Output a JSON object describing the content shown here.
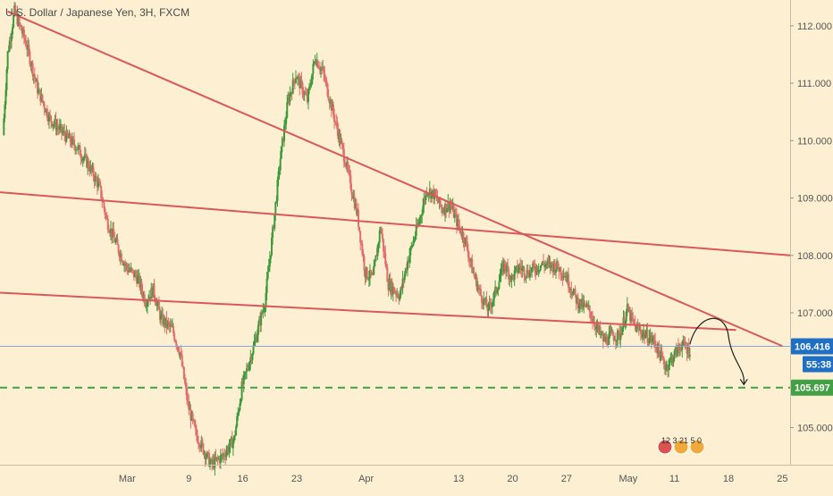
{
  "chart_data": {
    "type": "candlestick",
    "title": "U.S. Dollar / Japanese Yen, 3H, FXCM",
    "ylim": [
      104.4,
      112.45
    ],
    "y_ticks": [
      "112.000",
      "111.000",
      "110.000",
      "109.000",
      "108.000",
      "107.000",
      "105.000"
    ],
    "y_tick_values": [
      112,
      111,
      110,
      109,
      108,
      107,
      105
    ],
    "x_labels": [
      "Mar",
      "9",
      "16",
      "23",
      "Apr",
      "13",
      "20",
      "27",
      "May",
      "11",
      "18",
      "25"
    ],
    "x_label_days": [
      16,
      24,
      31,
      38,
      47,
      59,
      66,
      73,
      81,
      87,
      94,
      101
    ],
    "x_day_range": [
      -0.5,
      102
    ],
    "price_path": [
      [
        0,
        110.1
      ],
      [
        0.6,
        111.5
      ],
      [
        1.5,
        112.25
      ],
      [
        3,
        111.7
      ],
      [
        4.5,
        110.9
      ],
      [
        6,
        110.4
      ],
      [
        8,
        110.1
      ],
      [
        9.5,
        109.9
      ],
      [
        11,
        109.6
      ],
      [
        12.5,
        109.2
      ],
      [
        13.5,
        108.6
      ],
      [
        15,
        108.1
      ],
      [
        16,
        107.8
      ],
      [
        17.5,
        107.6
      ],
      [
        18.5,
        107.2
      ],
      [
        19.5,
        107.4
      ],
      [
        20.5,
        106.9
      ],
      [
        22,
        106.7
      ],
      [
        23,
        106.3
      ],
      [
        24,
        105.4
      ],
      [
        25,
        104.9
      ],
      [
        27,
        104.35
      ],
      [
        28.5,
        104.5
      ],
      [
        30,
        104.8
      ],
      [
        31,
        105.7
      ],
      [
        32.5,
        106.4
      ],
      [
        34,
        107.2
      ],
      [
        35,
        108.4
      ],
      [
        36,
        109.7
      ],
      [
        37,
        110.7
      ],
      [
        38,
        111.15
      ],
      [
        39.5,
        110.7
      ],
      [
        40.5,
        111.45
      ],
      [
        41.5,
        111.2
      ],
      [
        43,
        110.4
      ],
      [
        44.5,
        109.6
      ],
      [
        46,
        108.7
      ],
      [
        47,
        107.7
      ],
      [
        48,
        107.6
      ],
      [
        49,
        108.5
      ],
      [
        50,
        107.5
      ],
      [
        51.5,
        107.3
      ],
      [
        52.5,
        107.9
      ],
      [
        54,
        108.6
      ],
      [
        55,
        109.15
      ],
      [
        56,
        109.05
      ],
      [
        57,
        108.8
      ],
      [
        58,
        108.9
      ],
      [
        59,
        108.55
      ],
      [
        60,
        108.25
      ],
      [
        61,
        107.7
      ],
      [
        62,
        107.3
      ],
      [
        63,
        107.05
      ],
      [
        64,
        107.4
      ],
      [
        65,
        107.85
      ],
      [
        66,
        107.6
      ],
      [
        67,
        107.8
      ],
      [
        68,
        107.7
      ],
      [
        70,
        107.85
      ],
      [
        72,
        107.8
      ],
      [
        73,
        107.65
      ],
      [
        74.5,
        107.2
      ],
      [
        76,
        107.05
      ],
      [
        77,
        106.75
      ],
      [
        78,
        106.5
      ],
      [
        79,
        106.6
      ],
      [
        80,
        106.6
      ],
      [
        81,
        107.05
      ],
      [
        82,
        106.75
      ],
      [
        83,
        106.65
      ],
      [
        84.5,
        106.5
      ],
      [
        86,
        106.05
      ],
      [
        87,
        106.25
      ],
      [
        88,
        106.45
      ],
      [
        89,
        106.35
      ]
    ],
    "trendlines": [
      {
        "from": [
          0.5,
          112.25
        ],
        "to": [
          101,
          106.42
        ]
      },
      {
        "from": [
          -0.5,
          109.1
        ],
        "to": [
          102,
          108.0
        ]
      },
      {
        "from": [
          -0.5,
          107.35
        ],
        "to": [
          95,
          106.7
        ]
      }
    ],
    "support_level": 105.697,
    "current_price_line": 106.416,
    "price_tags": [
      {
        "value": "106.416",
        "color": "#1f6fc5"
      },
      {
        "value": "55:38",
        "color": "#1f6fc5"
      },
      {
        "value": "105.697",
        "color": "#43a047"
      }
    ],
    "projected_path": [
      [
        89,
        106.45
      ],
      [
        91.5,
        106.85
      ],
      [
        94,
        106.6
      ],
      [
        96,
        105.75
      ]
    ],
    "colors": {
      "background": "#fdf0d2",
      "up": "#3d9a3d",
      "down": "#e26d6d",
      "trendline": "#d9585a",
      "support": "#43a047",
      "current": "#8aa7d6"
    },
    "badge_text": "12 3 21 5 0"
  }
}
